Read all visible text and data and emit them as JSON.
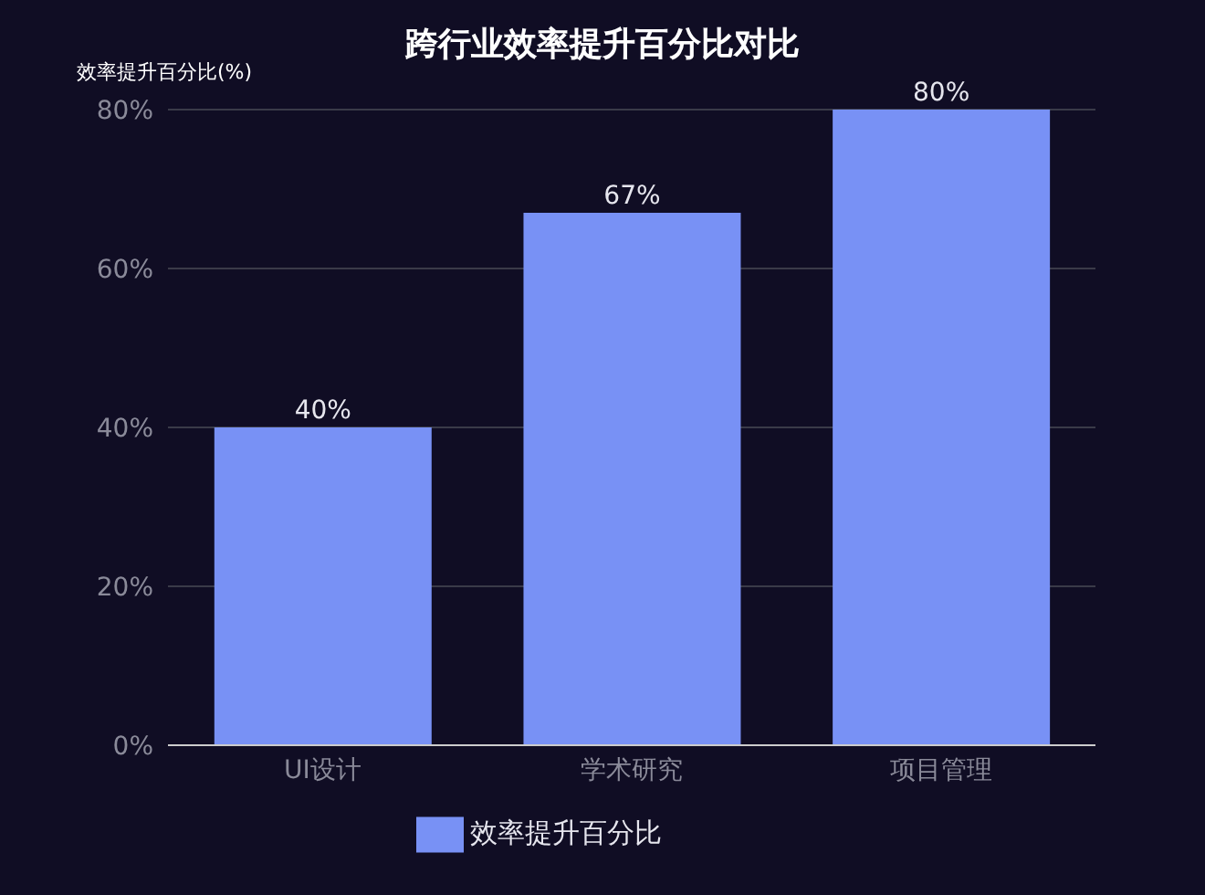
{
  "chart_data": {
    "type": "bar",
    "title": "跨行业效率提升百分比对比",
    "ylabel": "效率提升百分比(%)",
    "categories": [
      "UI设计",
      "学术研究",
      "项目管理"
    ],
    "series": [
      {
        "name": "效率提升百分比",
        "color": "#7891f5",
        "values": [
          40,
          67,
          80
        ],
        "value_labels": [
          "40%",
          "67%",
          "80%"
        ]
      }
    ],
    "ylim": [
      0,
      80
    ],
    "yticks": [
      {
        "value": 0,
        "label": "0%"
      },
      {
        "value": 20,
        "label": "20%"
      },
      {
        "value": 40,
        "label": "40%"
      },
      {
        "value": 60,
        "label": "60%"
      },
      {
        "value": 80,
        "label": "80%"
      }
    ],
    "grid": "y",
    "legend": "bottom"
  }
}
